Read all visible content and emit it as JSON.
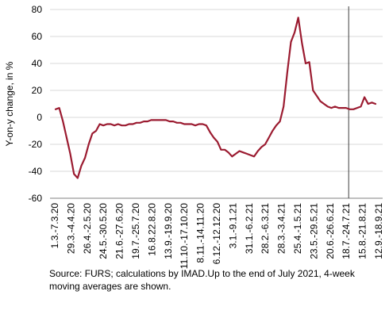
{
  "chart_data": {
    "type": "line",
    "title": "",
    "ylabel": "Y-on-y change, in %",
    "xlabel": "",
    "ylim": [
      -60,
      80
    ],
    "yticks": [
      -60,
      -40,
      -20,
      0,
      20,
      40,
      60,
      80
    ],
    "grid": "horizontal",
    "series": [
      {
        "color": "#9b1b30",
        "values": [
          6,
          7,
          -3,
          -15,
          -27,
          -42,
          -45,
          -36,
          -30,
          -20,
          -12,
          -10,
          -5,
          -6,
          -5,
          -5,
          -6,
          -5,
          -6,
          -6,
          -5,
          -5,
          -4,
          -4,
          -3,
          -3,
          -2,
          -2,
          -2,
          -2,
          -2,
          -3,
          -3,
          -4,
          -4,
          -5,
          -5,
          -5,
          -6,
          -5,
          -5,
          -6,
          -11,
          -15,
          -18,
          -24,
          -24,
          -26,
          -29,
          -27,
          -25,
          -26,
          -27,
          -28,
          -29,
          -25,
          -22,
          -20,
          -15,
          -10,
          -6,
          -3,
          8,
          33,
          56,
          63,
          74,
          55,
          40,
          41,
          20,
          16,
          12,
          10,
          8,
          7,
          8,
          7,
          7,
          7,
          6,
          6,
          7,
          8,
          15,
          10,
          11,
          10
        ]
      }
    ],
    "x_tick_labels": [
      "1.3.-7.3.20",
      "29.3.-4.4.20",
      "26.4.-2.5.20",
      "24.5.-30.5.20",
      "21.6.-27.6.20",
      "19.7.-25.7.20",
      "16.8.22.8.20",
      "13.9.-19.9.20",
      "11.10.-17.10.20",
      "8.11.-14.11.20",
      "6.12.-12.12.20",
      "3.1.-9.1.21",
      "31.1.-6.2.21",
      "28.2.-6.3.21",
      "28.3.-3.4.21",
      "25.4.-1.5.21",
      "23.5.-29.5.21",
      "20.6.-26.6.21",
      "18.7.-24.7.21",
      "15.8.-21.8.21",
      "12.9.-18.9.21"
    ],
    "vertical_marker_after_label": "18.7.-24.7.21",
    "annotation": "Source: FURS; calculations by IMAD.Up to the end of July 2021, 4-week moving averages are shown."
  },
  "colors": {
    "line": "#9b1b30",
    "grid": "#d9d9d9",
    "axis": "#808080",
    "marker": "#404040"
  }
}
